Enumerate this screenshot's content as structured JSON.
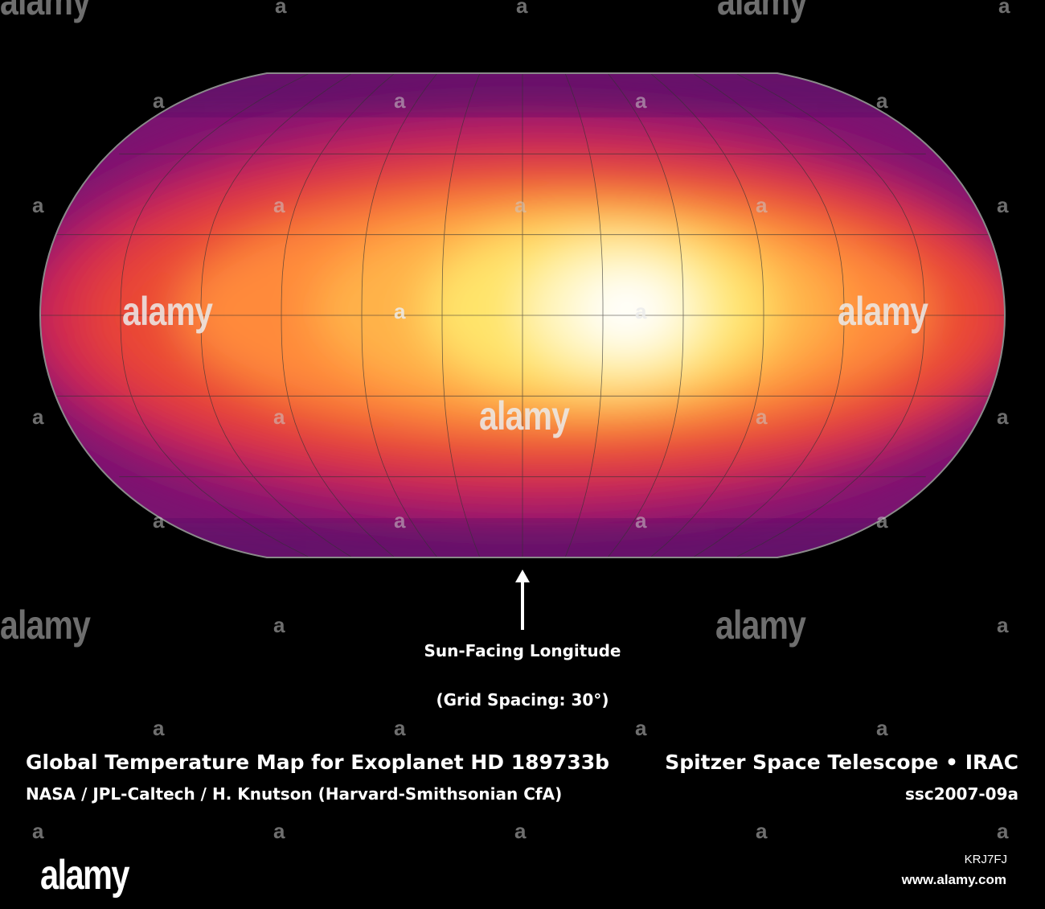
{
  "map": {
    "projection": "Robinson-style equal-area world map",
    "grid_spacing_deg": 30,
    "colors": {
      "hot": "#ffffff",
      "warm": "#ffe060",
      "mid": "#ff9a3c",
      "cool": "#e83a36",
      "cold": "#a0186e",
      "coldest": "#40105a",
      "outline": "#888888",
      "gridline": "#333333"
    },
    "hotspot_longitude_offset_deg": 30
  },
  "labels": {
    "sun_facing": "Sun-Facing Longitude",
    "grid_spacing": "(Grid Spacing: 30°)",
    "title": "Global Temperature Map for Exoplanet HD 189733b",
    "credit": "NASA / JPL-Caltech / H. Knutson (Harvard-Smithsonian CfA)",
    "instrument": "Spitzer Space Telescope • IRAC",
    "caption_id": "ssc2007-09a"
  },
  "watermark": {
    "logo": "alamy",
    "letter": "a",
    "image_id": "KRJ7FJ",
    "url": "www.alamy.com"
  }
}
